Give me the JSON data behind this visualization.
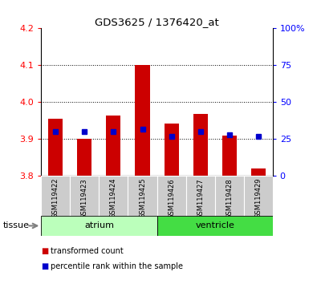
{
  "title": "GDS3625 / 1376420_at",
  "samples": [
    "GSM119422",
    "GSM119423",
    "GSM119424",
    "GSM119425",
    "GSM119426",
    "GSM119427",
    "GSM119428",
    "GSM119429"
  ],
  "red_values": [
    3.955,
    3.9,
    3.965,
    4.1,
    3.942,
    3.968,
    3.91,
    3.82
  ],
  "blue_values": [
    30,
    30,
    30,
    32,
    27,
    30,
    28,
    27
  ],
  "baseline": 3.8,
  "ylim_left": [
    3.8,
    4.2
  ],
  "ylim_right": [
    0,
    100
  ],
  "yticks_left": [
    3.8,
    3.9,
    4.0,
    4.1,
    4.2
  ],
  "yticks_right": [
    0,
    25,
    50,
    75,
    100
  ],
  "ytick_labels_right": [
    "0",
    "25",
    "50",
    "75",
    "100%"
  ],
  "grid_values": [
    3.9,
    4.0,
    4.1
  ],
  "tissue_groups": [
    {
      "label": "atrium",
      "start": 0,
      "end": 3,
      "color": "#bbffbb"
    },
    {
      "label": "ventricle",
      "start": 4,
      "end": 7,
      "color": "#44dd44"
    }
  ],
  "bar_width": 0.5,
  "red_color": "#cc0000",
  "blue_color": "#0000cc",
  "tick_gray_bg": "#cccccc",
  "legend_red_label": "transformed count",
  "legend_blue_label": "percentile rank within the sample",
  "tissue_label": "tissue",
  "atrium_color": "#bbffbb",
  "ventricle_color": "#44dd44"
}
